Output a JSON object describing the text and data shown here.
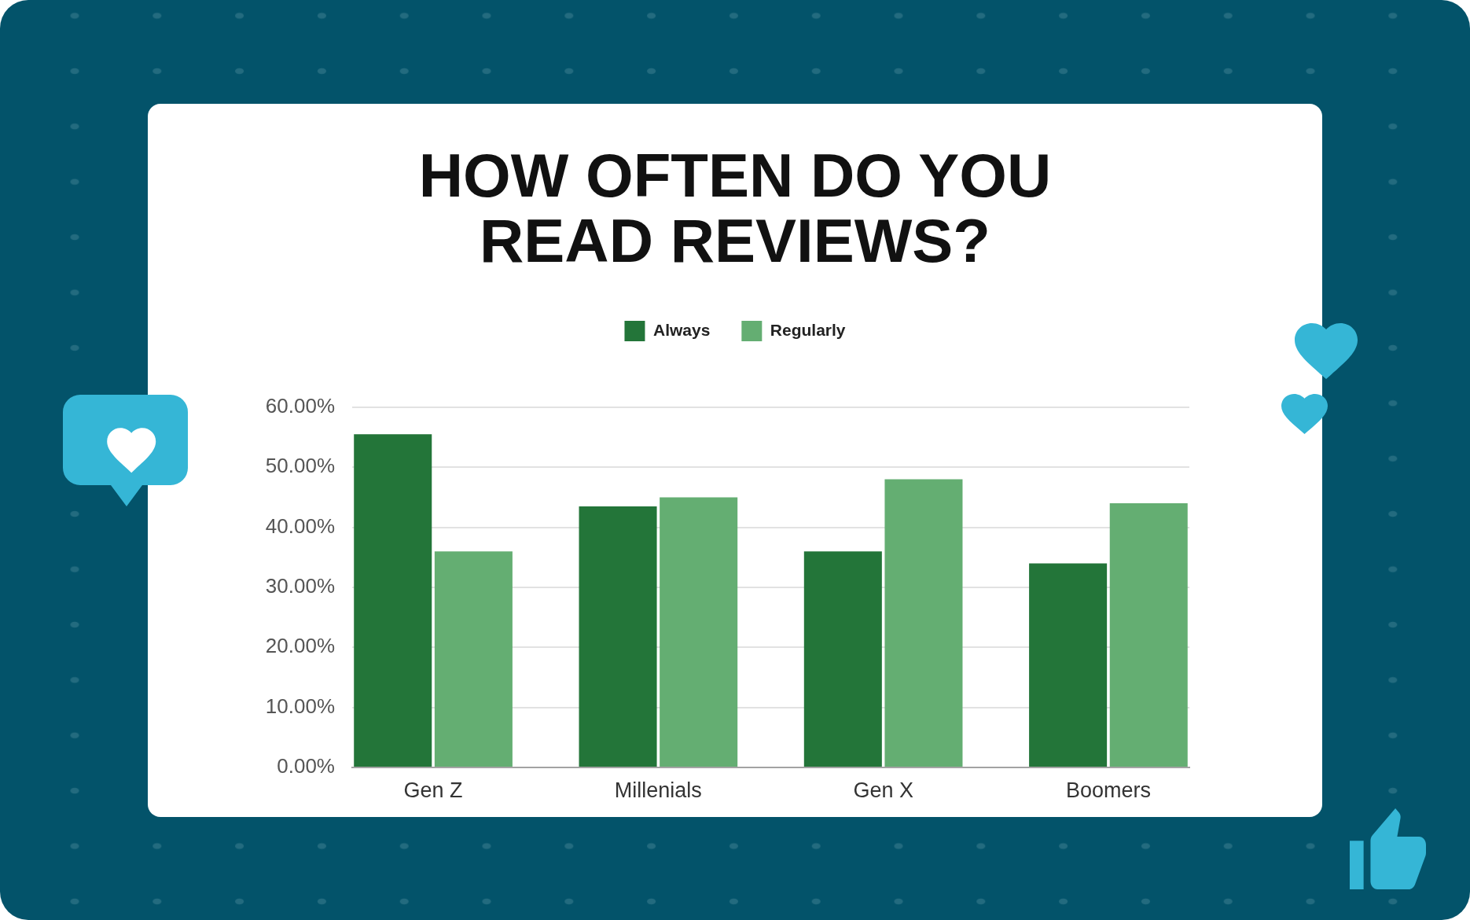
{
  "chart_data": {
    "type": "bar",
    "title": "HOW OFTEN DO YOU READ REVIEWS?",
    "categories": [
      "Gen Z",
      "Millenials",
      "Gen X",
      "Boomers"
    ],
    "series": [
      {
        "name": "Always",
        "color": "#237539",
        "values": [
          55.5,
          43.5,
          36,
          34
        ]
      },
      {
        "name": "Regularly",
        "color": "#64ae72",
        "values": [
          36,
          45,
          48,
          44
        ]
      }
    ],
    "ylim": [
      0,
      60
    ],
    "yticks": [
      {
        "value": 0,
        "label": "0.00%"
      },
      {
        "value": 10,
        "label": "10.00%"
      },
      {
        "value": 20,
        "label": "20.00%"
      },
      {
        "value": 30,
        "label": "30.00%"
      },
      {
        "value": 40,
        "label": "40.00%"
      },
      {
        "value": 50,
        "label": "50.00%"
      },
      {
        "value": 60,
        "label": "60.00%"
      }
    ],
    "grid": "y",
    "legend": "top"
  }
}
